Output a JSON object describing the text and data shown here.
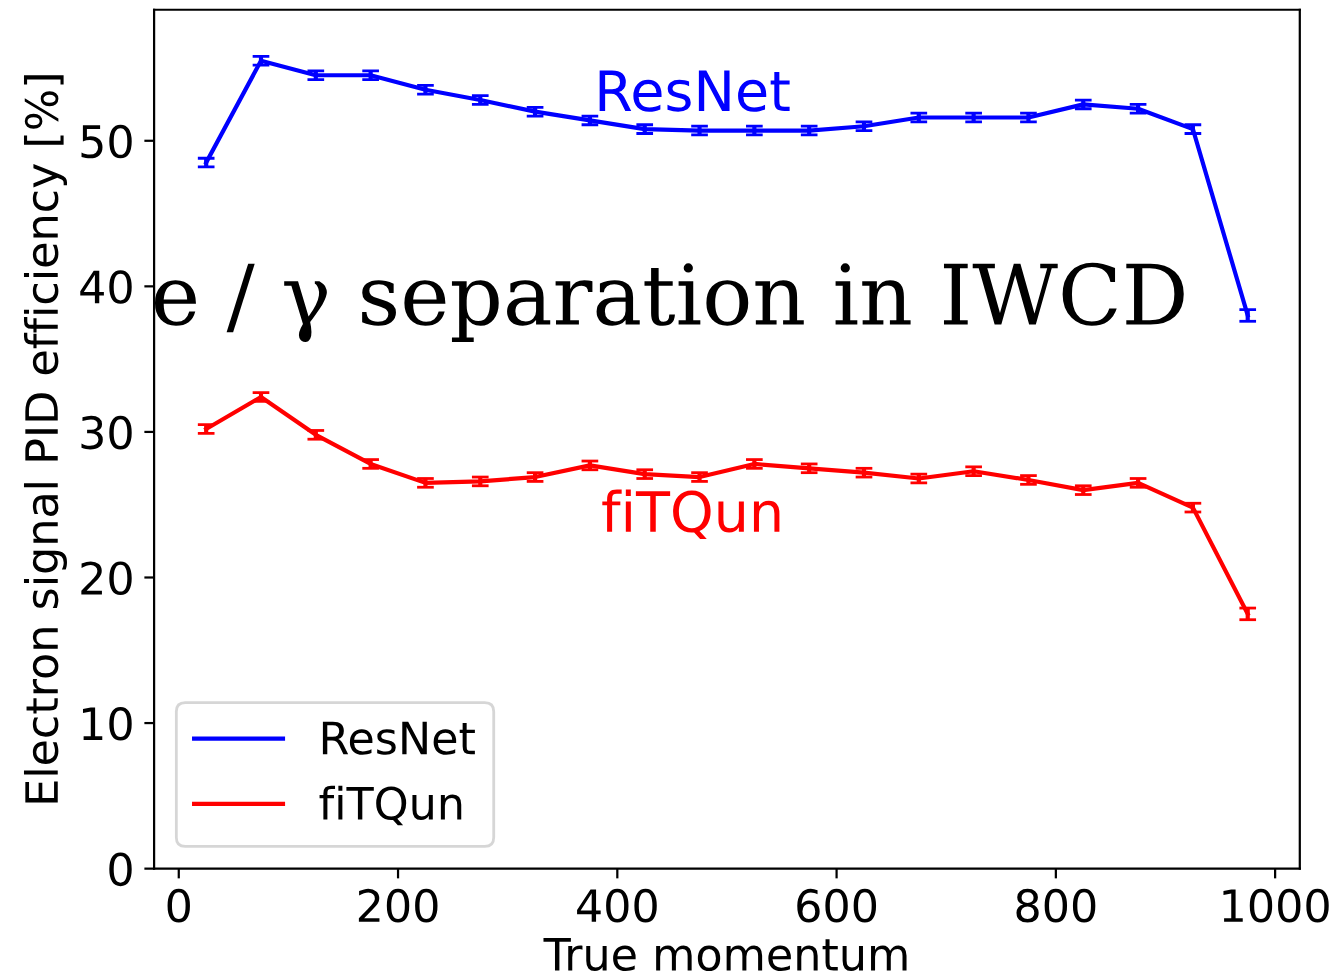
{
  "chart_data": {
    "type": "line",
    "title": "e / γ separation in IWCD",
    "xlabel": "True momentum",
    "ylabel": "Electron signal PID efficiency [%]",
    "x": [
      25,
      75,
      125,
      175,
      225,
      275,
      325,
      375,
      425,
      475,
      525,
      575,
      625,
      675,
      725,
      775,
      825,
      875,
      925,
      975
    ],
    "series": [
      {
        "name": "ResNet",
        "color": "#0000ff",
        "values": [
          48.5,
          55.5,
          54.5,
          54.5,
          53.5,
          52.8,
          52.0,
          51.4,
          50.8,
          50.7,
          50.7,
          50.7,
          51.0,
          51.6,
          51.6,
          51.6,
          52.5,
          52.2,
          50.8,
          38.0
        ],
        "errors": [
          0.3,
          0.3,
          0.3,
          0.3,
          0.3,
          0.3,
          0.3,
          0.3,
          0.3,
          0.3,
          0.3,
          0.3,
          0.3,
          0.3,
          0.3,
          0.3,
          0.3,
          0.3,
          0.3,
          0.4
        ]
      },
      {
        "name": "fiTQun",
        "color": "#ff0000",
        "values": [
          30.2,
          32.4,
          29.8,
          27.8,
          26.5,
          26.6,
          26.9,
          27.7,
          27.1,
          26.9,
          27.8,
          27.5,
          27.2,
          26.8,
          27.3,
          26.7,
          26.0,
          26.5,
          24.8,
          17.5
        ],
        "errors": [
          0.3,
          0.3,
          0.3,
          0.3,
          0.3,
          0.3,
          0.3,
          0.3,
          0.3,
          0.3,
          0.3,
          0.3,
          0.3,
          0.3,
          0.3,
          0.3,
          0.3,
          0.3,
          0.3,
          0.4
        ]
      }
    ],
    "annotations": [
      "ResNet",
      "fiTQun"
    ],
    "xlim": [
      -22.5,
      1022.5
    ],
    "xticks": [
      0,
      200,
      400,
      600,
      800,
      1000
    ],
    "ylim": [
      0,
      59
    ],
    "yticks": [
      0,
      10,
      20,
      30,
      40,
      50
    ],
    "legend": "bottom left",
    "grid": false
  }
}
